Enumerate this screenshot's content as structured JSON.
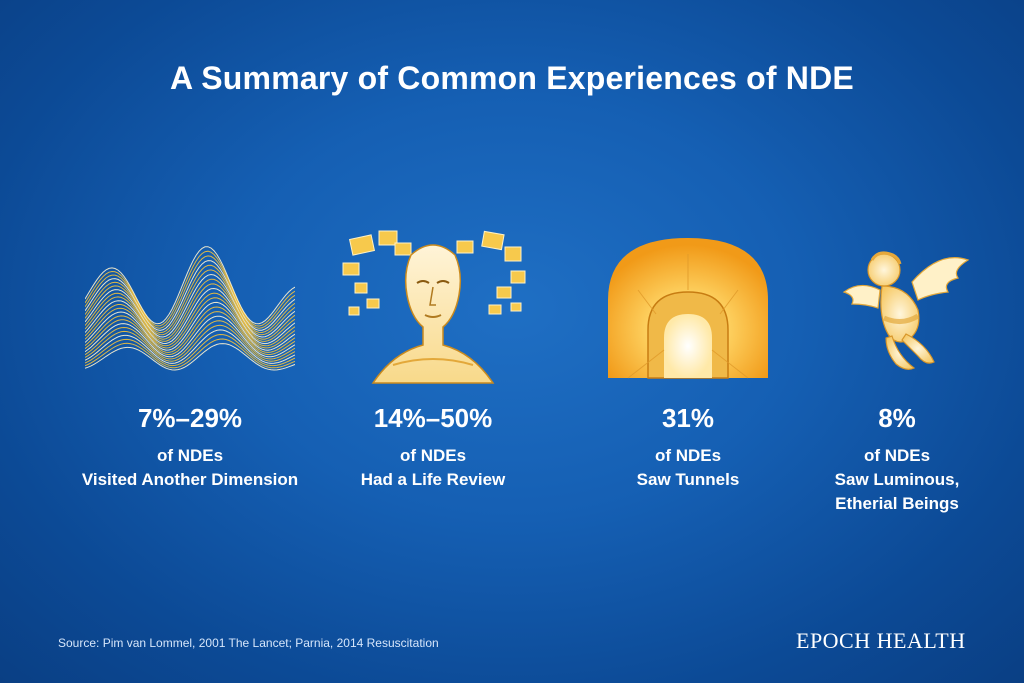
{
  "title": "A Summary of Common Experiences of NDE",
  "stats": [
    {
      "percent": "7%–29%",
      "line1": "of NDEs",
      "line2": "Visited Another Dimension",
      "line3": "",
      "icon": "wave-lines-icon"
    },
    {
      "percent": "14%–50%",
      "line1": "of NDEs",
      "line2": "Had a Life Review",
      "line3": "",
      "icon": "head-with-memories-icon"
    },
    {
      "percent": "31%",
      "line1": "of NDEs",
      "line2": "Saw Tunnels",
      "line3": "",
      "icon": "glowing-tunnel-icon"
    },
    {
      "percent": "8%",
      "line1": "of NDEs",
      "line2": "Saw Luminous,",
      "line3": "Etherial Beings",
      "icon": "cherub-angel-icon"
    }
  ],
  "source": "Source: Pim van Lommel, 2001 The Lancet; Parnia, 2014 Resuscitation",
  "brand": "EPOCH HEALTH",
  "colors": {
    "background": "#155fb3",
    "accent": "#f5c23a",
    "glow": "#ffe9a8"
  }
}
